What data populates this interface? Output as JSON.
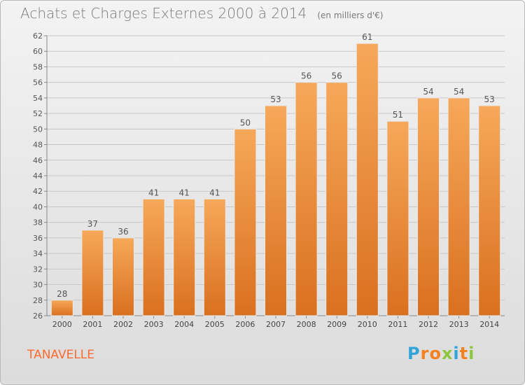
{
  "chart_data": {
    "type": "bar",
    "title": "Achats et Charges Externes 2000 à 2014",
    "subtitle": "(en milliers d'€)",
    "xlabel": "",
    "ylabel": "",
    "categories": [
      "2000",
      "2001",
      "2002",
      "2003",
      "2004",
      "2005",
      "2006",
      "2007",
      "2008",
      "2009",
      "2010",
      "2011",
      "2012",
      "2013",
      "2014"
    ],
    "values": [
      28,
      37,
      36,
      41,
      41,
      41,
      50,
      53,
      56,
      56,
      61,
      51,
      54,
      54,
      53
    ],
    "data_labels": [
      "28",
      "37",
      "36",
      "41",
      "41",
      "41",
      "50",
      "53",
      "56",
      "56",
      "61",
      "51",
      "54",
      "54",
      "53"
    ],
    "ylim": [
      26,
      62
    ],
    "yticks": [
      "26",
      "28",
      "30",
      "32",
      "34",
      "36",
      "38",
      "40",
      "42",
      "44",
      "46",
      "48",
      "50",
      "52",
      "54",
      "56",
      "58",
      "60",
      "62"
    ],
    "grid": true,
    "legend": "none",
    "bar_color_top": "#f7a85a",
    "bar_color_bottom": "#d9701f",
    "grid_color": "#c8c8c8"
  },
  "commune": "TANAVELLE",
  "logo": {
    "text": "Proxiti",
    "letters": [
      "P",
      "r",
      "o",
      "x",
      "i",
      "t",
      "i"
    ],
    "colors": [
      "#33a4d8",
      "#f58220",
      "#f58220",
      "#8dc63f",
      "#33a4d8",
      "#f58220",
      "#8dc63f"
    ]
  }
}
